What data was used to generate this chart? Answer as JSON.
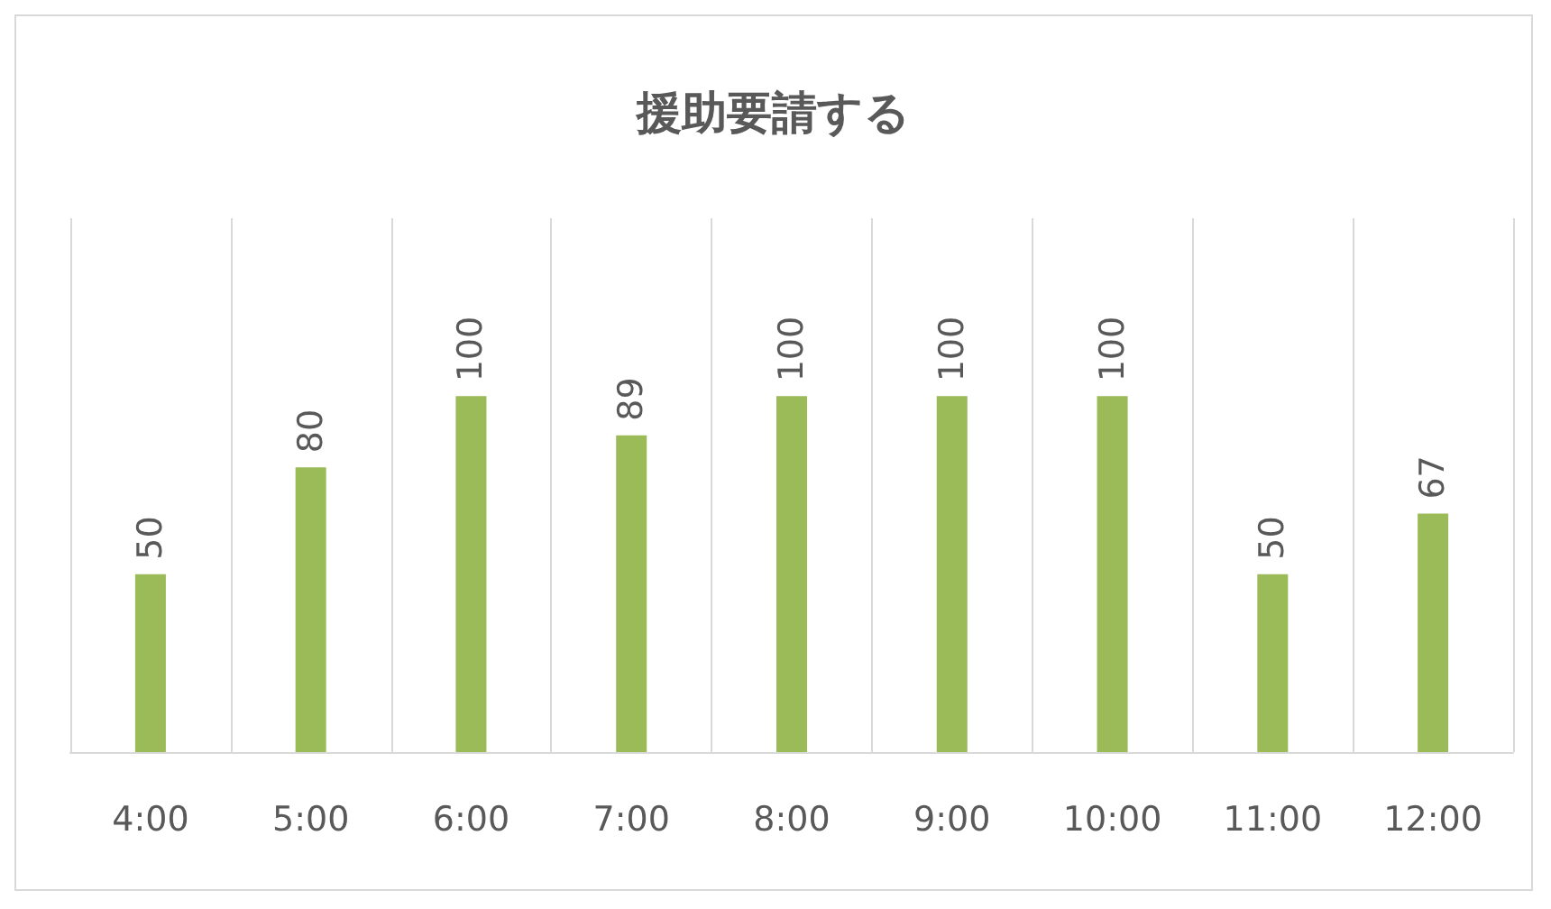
{
  "chart_data": {
    "type": "bar",
    "title": "援助要請する",
    "categories": [
      "4:00",
      "5:00",
      "6:00",
      "7:00",
      "8:00",
      "9:00",
      "10:00",
      "11:00",
      "12:00"
    ],
    "values": [
      50,
      80,
      100,
      89,
      100,
      100,
      100,
      50,
      67
    ],
    "color": "#9bbb59",
    "data_labels": true,
    "grid": "x"
  }
}
